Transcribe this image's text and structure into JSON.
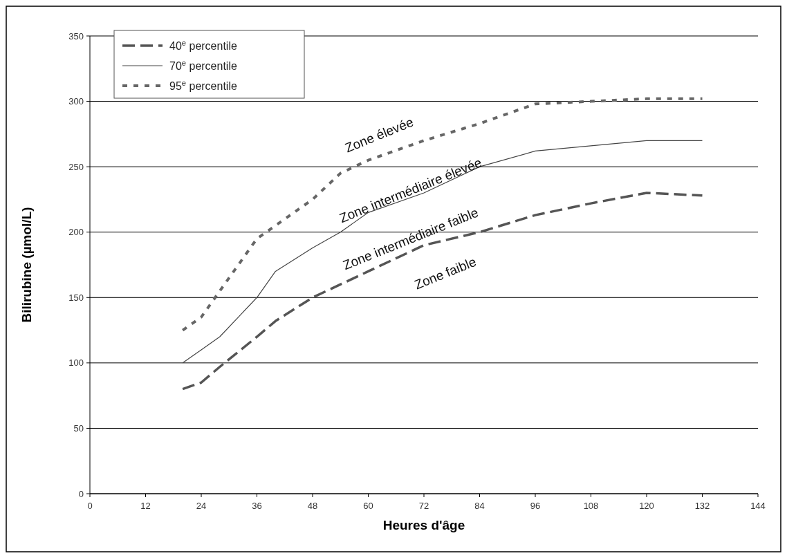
{
  "chart_data": {
    "type": "line",
    "xlabel": "Heures d'âge",
    "ylabel": "Bilirubine (µmol/L)",
    "xlim": [
      0,
      144
    ],
    "xticks": [
      0,
      12,
      24,
      36,
      48,
      60,
      72,
      84,
      96,
      108,
      120,
      132,
      144
    ],
    "ylim": [
      0,
      350
    ],
    "yticks": [
      0,
      50,
      100,
      150,
      200,
      250,
      300,
      350
    ],
    "grid": "y",
    "legend": "top left",
    "series": [
      {
        "name": "40$^{e}$ percentile",
        "color": "#555555",
        "line_style": "dashed",
        "x": [
          20,
          24,
          28,
          36,
          40,
          48,
          60,
          72,
          84,
          96,
          108,
          120,
          132
        ],
        "values": [
          80,
          85,
          97,
          120,
          132,
          150,
          170,
          190,
          200,
          213,
          222,
          230,
          228
        ]
      },
      {
        "name": "70$^{e}$ percentile",
        "color": "#444444",
        "line_style": "solid",
        "x": [
          20,
          24,
          28,
          32,
          36,
          40,
          48,
          54,
          60,
          72,
          84,
          96,
          108,
          120,
          132
        ],
        "values": [
          100,
          110,
          120,
          135,
          150,
          170,
          188,
          200,
          215,
          230,
          250,
          262,
          266,
          270,
          270
        ]
      },
      {
        "name": "95$^{e}$ percentile",
        "color": "#666666",
        "line_style": "dotted",
        "x": [
          20,
          24,
          28,
          32,
          36,
          40,
          48,
          54,
          60,
          72,
          84,
          96,
          108,
          120,
          132
        ],
        "values": [
          125,
          135,
          155,
          175,
          195,
          205,
          225,
          245,
          255,
          270,
          283,
          298,
          300,
          302,
          302
        ]
      }
    ],
    "annotations": [
      "Zone élevée",
      "Zone intermédiaire élevée",
      "Zone intermédiaire faible",
      "Zone faible"
    ]
  }
}
